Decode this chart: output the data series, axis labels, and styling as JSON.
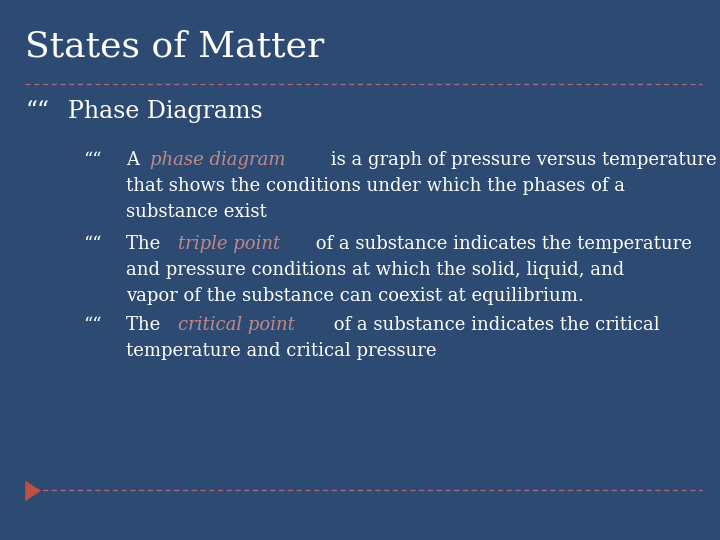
{
  "title": "States of Matter",
  "background_color": "#2D4B72",
  "title_color": "#FFFFFF",
  "title_fontsize": 26,
  "bullet1_text": "Phase Diagrams",
  "bullet1_color": "#FFFFFF",
  "bullet1_fontsize": 17,
  "bullet_marker": "““",
  "sub_bullets": [
    {
      "prefix": "A ",
      "highlight": "phase diagram",
      "highlight_color": "#C08A8A",
      "line2": " is a graph of pressure versus temperature",
      "line3": "that shows the conditions under which the phases of a",
      "line4": "substance exist"
    },
    {
      "prefix": "The ",
      "highlight": "triple point",
      "highlight_color": "#C08A8A",
      "line2": " of a substance indicates the temperature",
      "line3": "and pressure conditions at which the solid, liquid, and",
      "line4": "vapor of the substance can coexist at equilibrium."
    },
    {
      "prefix": "The ",
      "highlight": "critical point",
      "highlight_color": "#C08A8A",
      "line2": " of a substance indicates the critical",
      "line3": "temperature and critical pressure",
      "line4": ""
    }
  ],
  "text_color": "#FFFFFF",
  "sub_fontsize": 13,
  "dashed_line_color": "#B06A7A",
  "footer_arrow_color": "#C05040"
}
